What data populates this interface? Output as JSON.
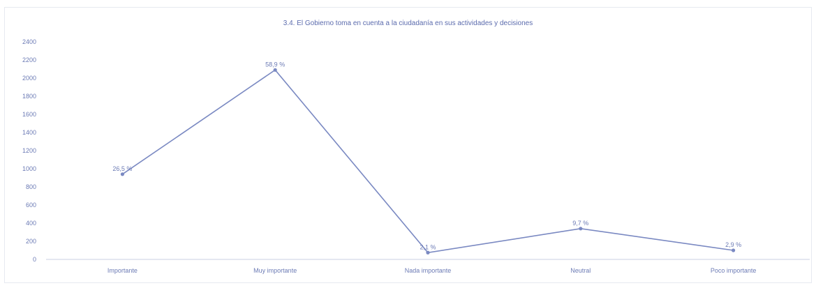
{
  "chart_data": {
    "type": "line",
    "title": "3.4. El Gobierno toma en cuenta a la ciudadanía en sus actividades y decisiones",
    "xlabel": "",
    "ylabel": "",
    "categories": [
      "Importante",
      "Muy importante",
      "Nada importante",
      "Neutral",
      "Poco importante"
    ],
    "series": [
      {
        "values": [
          940,
          2090,
          75,
          340,
          100
        ],
        "labels": [
          "26,5 %",
          "58,9 %",
          "2,1 %",
          "9,7 %",
          "2,9 %"
        ]
      }
    ],
    "ylim": [
      0,
      2400
    ],
    "yticks": [
      0,
      200,
      400,
      600,
      800,
      1000,
      1200,
      1400,
      1600,
      1800,
      2000,
      2200,
      2400
    ],
    "grid": false,
    "legend": "none",
    "colors": {
      "line": "#7a89c2",
      "text": "#6c7bb5",
      "axis": "#c9cfe3"
    }
  }
}
